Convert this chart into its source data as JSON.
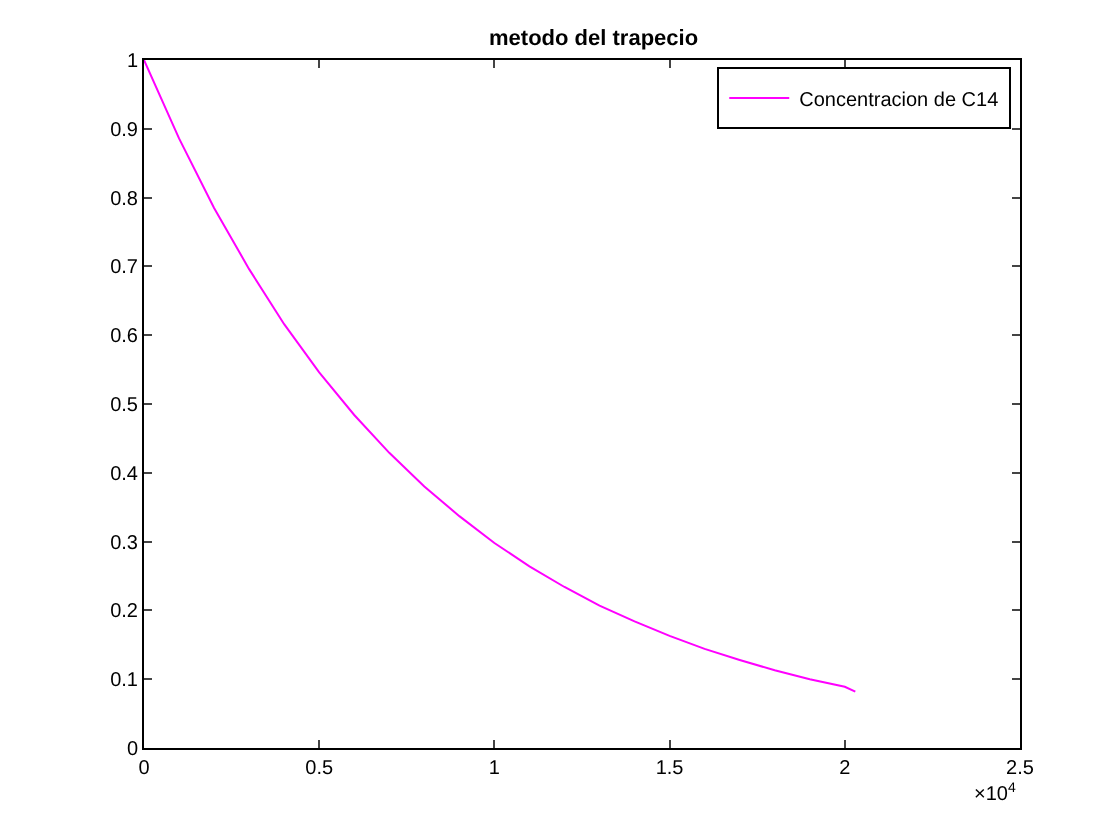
{
  "chart_data": {
    "type": "line",
    "title": "metodo del trapecio",
    "x": [
      0,
      0.1,
      0.2,
      0.3,
      0.4,
      0.5,
      0.6,
      0.7,
      0.8,
      0.9,
      1,
      1.1,
      1.2,
      1.3,
      1.4,
      1.5,
      1.6,
      1.7,
      1.8,
      1.9,
      2,
      2.03
    ],
    "series": [
      {
        "name": "Concentracion de C14",
        "color": "#ff00ff",
        "values": [
          1,
          0.886,
          0.785,
          0.696,
          0.616,
          0.546,
          0.484,
          0.429,
          0.38,
          0.337,
          0.298,
          0.264,
          0.234,
          0.207,
          0.184,
          0.163,
          0.144,
          0.128,
          0.113,
          0.1,
          0.089,
          0.082
        ]
      }
    ],
    "xlim": [
      0,
      2.5
    ],
    "xticks": [
      0,
      0.5,
      1,
      1.5,
      2,
      2.5
    ],
    "ylim": [
      0,
      1
    ],
    "yticks": [
      0,
      0.1,
      0.2,
      0.3,
      0.4,
      0.5,
      0.6,
      0.7,
      0.8,
      0.9,
      1
    ],
    "annotations": [
      "×10$^{4}$"
    ],
    "grid": false,
    "legend": "top right",
    "marker": "none",
    "line_style": "solid"
  }
}
